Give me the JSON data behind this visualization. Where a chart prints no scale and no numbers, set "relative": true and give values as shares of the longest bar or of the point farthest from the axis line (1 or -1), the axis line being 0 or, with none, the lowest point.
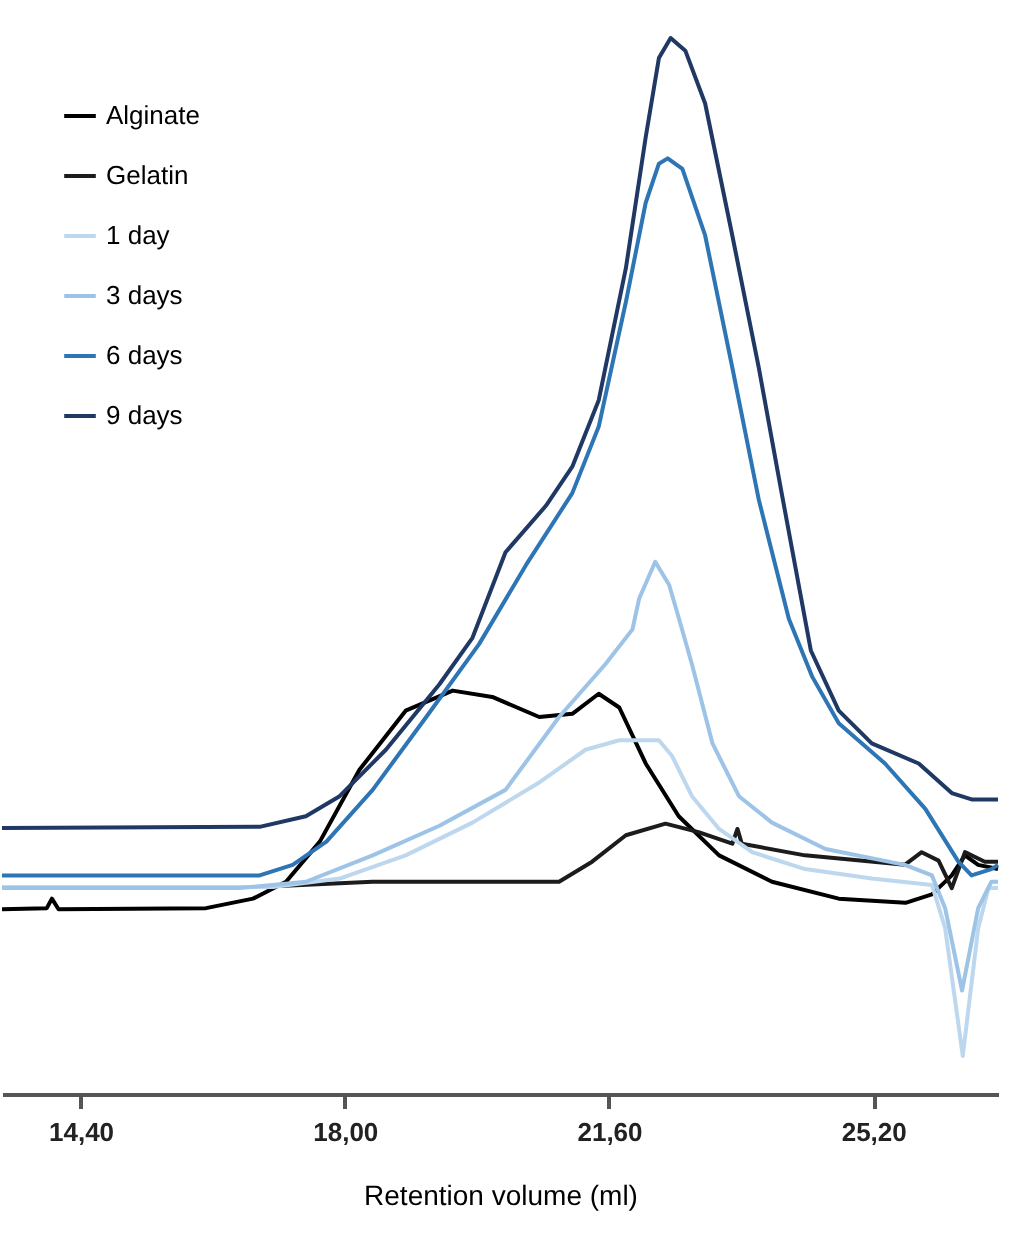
{
  "chart_data": {
    "type": "line",
    "relative": true,
    "xlabel": "Retention volume (ml)",
    "xlim": [
      13.33,
      26.9
    ],
    "xticks": [
      {
        "value": 14.4,
        "label": "14,40"
      },
      {
        "value": 18.0,
        "label": "18,00"
      },
      {
        "value": 21.6,
        "label": "21,60"
      },
      {
        "value": 25.2,
        "label": "25,20"
      }
    ],
    "tick_labels": "x",
    "grid": false,
    "legend": "top left",
    "marker": "none",
    "line_style": "solid",
    "series": [
      {
        "name": "Alginate",
        "color": "#000000",
        "x": [
          13.33,
          13.94,
          14.01,
          14.1,
          16.11,
          16.75,
          17.2,
          17.66,
          18.2,
          18.83,
          19.47,
          20.01,
          20.65,
          21.1,
          21.46,
          21.74,
          22.1,
          22.55,
          23.1,
          23.82,
          24.73,
          25.64,
          26.0,
          26.27,
          26.45,
          26.63,
          26.9
        ],
        "values": [
          0.175,
          0.176,
          0.185,
          0.175,
          0.176,
          0.185,
          0.201,
          0.239,
          0.307,
          0.363,
          0.382,
          0.376,
          0.357,
          0.36,
          0.379,
          0.366,
          0.313,
          0.263,
          0.226,
          0.201,
          0.185,
          0.181,
          0.189,
          0.207,
          0.226,
          0.217,
          0.213
        ]
      },
      {
        "name": "Gelatin",
        "color": "#1c1c1c",
        "x": [
          17.11,
          18.38,
          20.92,
          21.37,
          21.83,
          22.37,
          22.82,
          23.28,
          23.35,
          23.41,
          24.27,
          25.63,
          25.86,
          26.09,
          26.27,
          26.45,
          26.72,
          26.9
        ],
        "values": [
          0.197,
          0.201,
          0.201,
          0.22,
          0.245,
          0.256,
          0.248,
          0.237,
          0.251,
          0.237,
          0.226,
          0.217,
          0.229,
          0.221,
          0.195,
          0.229,
          0.22,
          0.22
        ]
      },
      {
        "name": "1 day",
        "color": "#bdd7ee",
        "x": [
          13.33,
          17.02,
          17.93,
          18.83,
          19.74,
          20.65,
          21.28,
          21.74,
          22.28,
          22.46,
          22.73,
          23.1,
          23.55,
          24.27,
          25.18,
          26.0,
          26.18,
          26.42,
          26.63,
          26.77,
          26.9
        ],
        "values": [
          0.196,
          0.196,
          0.204,
          0.226,
          0.257,
          0.295,
          0.326,
          0.335,
          0.335,
          0.32,
          0.282,
          0.251,
          0.229,
          0.213,
          0.204,
          0.198,
          0.157,
          0.036,
          0.157,
          0.195,
          0.195
        ]
      },
      {
        "name": "3 days",
        "color": "#9dc3e6",
        "x": [
          13.33,
          16.57,
          17.47,
          18.38,
          19.29,
          20.19,
          20.92,
          21.55,
          21.92,
          22.01,
          22.23,
          22.42,
          22.55,
          22.73,
          23.01,
          23.37,
          23.82,
          24.55,
          25.63,
          26.0,
          26.18,
          26.41,
          26.63,
          26.81,
          26.9
        ],
        "values": [
          0.195,
          0.195,
          0.201,
          0.226,
          0.254,
          0.288,
          0.357,
          0.407,
          0.44,
          0.469,
          0.504,
          0.482,
          0.451,
          0.407,
          0.332,
          0.282,
          0.257,
          0.232,
          0.217,
          0.207,
          0.176,
          0.098,
          0.176,
          0.201,
          0.201
        ]
      },
      {
        "name": "6 days",
        "color": "#2e75b6",
        "x": [
          13.33,
          16.84,
          17.29,
          17.75,
          18.38,
          19.11,
          19.83,
          20.47,
          21.1,
          21.46,
          21.83,
          22.1,
          22.28,
          22.4,
          22.6,
          22.91,
          23.28,
          23.64,
          24.05,
          24.37,
          24.73,
          25.36,
          25.91,
          26.36,
          26.54,
          26.81,
          26.9
        ],
        "values": [
          0.207,
          0.207,
          0.217,
          0.239,
          0.288,
          0.357,
          0.426,
          0.501,
          0.569,
          0.632,
          0.75,
          0.844,
          0.881,
          0.886,
          0.876,
          0.813,
          0.688,
          0.563,
          0.45,
          0.395,
          0.351,
          0.313,
          0.27,
          0.22,
          0.207,
          0.213,
          0.217
        ]
      },
      {
        "name": "9 days",
        "color": "#1f3864",
        "x": [
          13.33,
          16.84,
          17.47,
          17.93,
          18.56,
          19.29,
          19.74,
          20.19,
          20.74,
          21.1,
          21.46,
          21.83,
          22.1,
          22.28,
          22.44,
          22.64,
          22.91,
          23.28,
          23.64,
          23.95,
          24.35,
          24.73,
          25.18,
          25.82,
          26.27,
          26.54,
          26.9
        ],
        "values": [
          0.252,
          0.253,
          0.263,
          0.282,
          0.326,
          0.388,
          0.432,
          0.513,
          0.557,
          0.594,
          0.657,
          0.782,
          0.906,
          0.981,
          1.0,
          0.988,
          0.938,
          0.813,
          0.688,
          0.57,
          0.42,
          0.363,
          0.332,
          0.313,
          0.285,
          0.279,
          0.279
        ]
      }
    ]
  }
}
